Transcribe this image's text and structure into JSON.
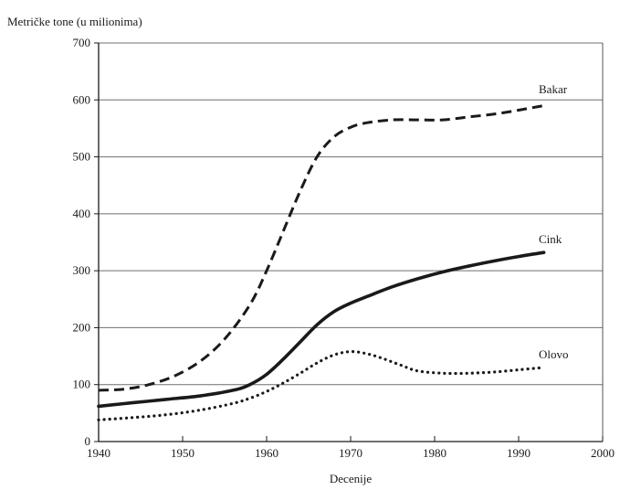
{
  "chart_data": {
    "type": "line",
    "ylabel": "Metričke tone (u milionima)",
    "xlabel": "Decenije",
    "xlim": [
      1940,
      2000
    ],
    "ylim": [
      0,
      700
    ],
    "xticks": [
      1940,
      1950,
      1960,
      1970,
      1980,
      1990,
      2000
    ],
    "yticks": [
      0,
      100,
      200,
      300,
      400,
      500,
      600,
      700
    ],
    "grid": "horizontal",
    "series": [
      {
        "name": "Bakar",
        "style": "dashed",
        "color": "#1a1a1a",
        "x": [
          1940,
          1943,
          1946,
          1949,
          1952,
          1955,
          1958,
          1960,
          1962,
          1964,
          1966,
          1968,
          1970,
          1972,
          1975,
          1978,
          1981,
          1984,
          1987,
          1990,
          1993
        ],
        "y": [
          90,
          92,
          100,
          115,
          140,
          180,
          240,
          300,
          370,
          440,
          500,
          535,
          552,
          560,
          565,
          565,
          565,
          570,
          575,
          582,
          590
        ]
      },
      {
        "name": "Cink",
        "style": "solid",
        "color": "#1a1a1a",
        "x": [
          1940,
          1944,
          1948,
          1952,
          1956,
          1958,
          1960,
          1962,
          1964,
          1966,
          1968,
          1970,
          1972,
          1975,
          1978,
          1981,
          1984,
          1987,
          1990,
          1993
        ],
        "y": [
          62,
          68,
          74,
          80,
          90,
          100,
          118,
          145,
          175,
          205,
          228,
          243,
          255,
          272,
          286,
          298,
          308,
          317,
          325,
          332
        ]
      },
      {
        "name": "Olovo",
        "style": "dotted",
        "color": "#1a1a1a",
        "x": [
          1940,
          1944,
          1948,
          1952,
          1956,
          1958,
          1960,
          1962,
          1964,
          1966,
          1968,
          1970,
          1972,
          1974,
          1976,
          1978,
          1981,
          1984,
          1987,
          1990,
          1993
        ],
        "y": [
          38,
          42,
          47,
          55,
          67,
          76,
          88,
          103,
          120,
          138,
          152,
          158,
          154,
          145,
          134,
          124,
          120,
          120,
          122,
          126,
          130
        ]
      }
    ]
  }
}
